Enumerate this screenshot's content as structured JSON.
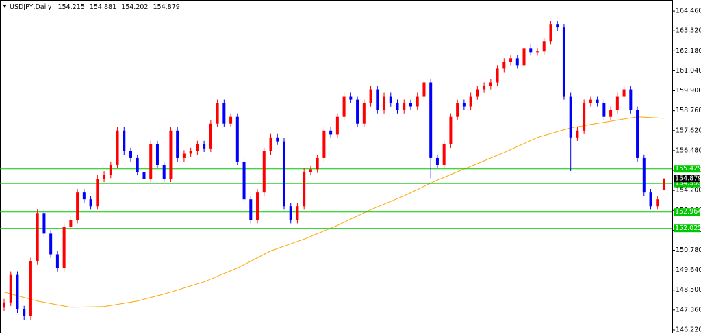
{
  "chart_data": {
    "type": "candlestick",
    "title": "USDJPY,Daily",
    "open": [
      147.5,
      147.793,
      149.365,
      147.399,
      147.006,
      150.151,
      152.903,
      151.724,
      150.544,
      149.758,
      152.117,
      152.51,
      154.082,
      153.689,
      153.296,
      154.868,
      155.1,
      155.655,
      157.62,
      156.441,
      156.048,
      155.261,
      154.868,
      156.834,
      155.655,
      154.868,
      157.62,
      156.048,
      156.3,
      156.441,
      156.834,
      156.6,
      158.013,
      159.192,
      158.013,
      158.406,
      155.851,
      153.689,
      152.51,
      154.082,
      156.441,
      157.227,
      157.0,
      153.296,
      152.51,
      153.296,
      155.261,
      155.4,
      156.048,
      157.62,
      157.4,
      158.406,
      159.586,
      159.389,
      158.013,
      159.192,
      159.979,
      158.799,
      159.586,
      159.192,
      158.799,
      159.192,
      159.0,
      159.586,
      160.372,
      156.048,
      155.655,
      156.834,
      158.406,
      159.192,
      159.0,
      159.586,
      159.979,
      160.175,
      160.372,
      161.158,
      161.551,
      161.748,
      161.355,
      162.337,
      162.1,
      162.141,
      162.73,
      163.713,
      163.517,
      159.586,
      157.227,
      157.62,
      159.192,
      159.389,
      159.2,
      158.406,
      158.799,
      159.586,
      159.979,
      158.799,
      156.048,
      154.082,
      153.296,
      154.215
    ],
    "high": [
      147.993,
      149.565,
      149.565,
      147.599,
      150.351,
      153.103,
      153.103,
      151.924,
      150.744,
      152.317,
      152.71,
      154.282,
      154.282,
      153.889,
      155.068,
      155.3,
      155.855,
      157.82,
      157.82,
      156.641,
      156.248,
      155.461,
      157.034,
      157.034,
      155.855,
      157.82,
      157.82,
      156.5,
      156.641,
      157.034,
      157.034,
      158.213,
      159.392,
      159.392,
      158.606,
      158.606,
      156.051,
      153.889,
      154.282,
      156.641,
      157.427,
      157.427,
      157.2,
      153.496,
      153.496,
      155.461,
      155.6,
      156.248,
      157.82,
      157.82,
      158.606,
      159.786,
      159.786,
      159.589,
      159.392,
      160.179,
      160.179,
      159.786,
      159.786,
      159.392,
      159.392,
      159.392,
      159.786,
      160.572,
      160.572,
      156.248,
      157.034,
      158.606,
      159.392,
      159.392,
      159.786,
      160.179,
      160.375,
      160.572,
      161.358,
      161.751,
      161.948,
      161.948,
      162.537,
      162.537,
      162.341,
      162.93,
      163.913,
      163.913,
      163.717,
      159.786,
      157.82,
      159.392,
      159.589,
      159.589,
      159.4,
      158.999,
      159.786,
      160.179,
      160.179,
      158.999,
      156.248,
      154.282,
      153.889,
      154.881
    ],
    "low": [
      147.3,
      147.593,
      147.199,
      146.806,
      146.806,
      149.951,
      151.524,
      150.344,
      149.558,
      149.558,
      151.917,
      152.31,
      153.489,
      153.096,
      153.096,
      154.668,
      154.9,
      155.455,
      156.241,
      155.848,
      155.061,
      154.668,
      154.668,
      155.455,
      154.668,
      154.668,
      155.848,
      155.848,
      156.1,
      156.241,
      156.4,
      156.4,
      157.813,
      157.813,
      157.813,
      155.651,
      153.489,
      152.31,
      152.31,
      153.882,
      156.241,
      156.8,
      153.096,
      152.31,
      152.31,
      153.096,
      155.061,
      155.2,
      155.848,
      157.2,
      157.2,
      158.206,
      159.189,
      157.813,
      157.813,
      158.992,
      158.599,
      158.599,
      158.992,
      158.599,
      158.599,
      158.8,
      158.8,
      159.386,
      154.9,
      155.455,
      155.455,
      156.634,
      158.206,
      158.8,
      158.8,
      159.386,
      159.779,
      159.975,
      160.172,
      160.958,
      161.351,
      161.155,
      161.155,
      161.9,
      161.9,
      161.941,
      162.53,
      163.317,
      159.386,
      155.3,
      157.027,
      157.42,
      158.992,
      159.0,
      158.206,
      158.206,
      158.599,
      159.386,
      158.599,
      155.848,
      153.882,
      153.096,
      153.096,
      154.202
    ],
    "close": [
      147.793,
      149.365,
      147.399,
      147.006,
      150.151,
      152.903,
      151.724,
      150.544,
      149.758,
      152.117,
      152.51,
      154.082,
      153.689,
      153.296,
      154.868,
      155.1,
      155.655,
      157.62,
      156.441,
      156.048,
      155.261,
      154.868,
      156.834,
      155.655,
      154.868,
      157.62,
      156.048,
      156.3,
      156.441,
      156.834,
      156.6,
      158.013,
      159.192,
      158.013,
      158.406,
      155.851,
      153.689,
      152.51,
      154.082,
      156.441,
      157.227,
      157.0,
      153.296,
      152.51,
      153.296,
      155.261,
      155.4,
      156.048,
      157.62,
      157.4,
      158.406,
      159.586,
      159.389,
      158.013,
      159.192,
      159.979,
      158.799,
      159.586,
      159.192,
      158.799,
      159.192,
      159.0,
      159.586,
      160.372,
      156.048,
      155.655,
      156.834,
      158.406,
      159.192,
      159.0,
      159.586,
      159.979,
      160.175,
      160.372,
      161.158,
      161.551,
      161.748,
      161.355,
      162.337,
      162.1,
      162.141,
      162.73,
      163.713,
      163.517,
      159.586,
      157.227,
      157.62,
      159.192,
      159.389,
      159.2,
      158.406,
      158.799,
      159.586,
      159.979,
      158.799,
      156.048,
      154.082,
      153.296,
      153.689,
      154.879
    ],
    "ma": [
      148.382,
      148.28,
      148.178,
      148.076,
      147.973,
      147.871,
      147.8,
      147.729,
      147.659,
      147.588,
      147.517,
      147.525,
      147.533,
      147.541,
      147.549,
      147.557,
      147.62,
      147.683,
      147.745,
      147.808,
      147.871,
      147.973,
      148.075,
      148.178,
      148.28,
      148.382,
      148.5,
      148.618,
      148.736,
      148.854,
      148.972,
      149.129,
      149.286,
      149.443,
      149.601,
      149.758,
      149.955,
      150.151,
      150.348,
      150.545,
      150.741,
      150.875,
      151.008,
      151.142,
      151.276,
      151.409,
      151.566,
      151.723,
      151.881,
      152.038,
      152.195,
      152.376,
      152.556,
      152.737,
      152.918,
      153.099,
      153.256,
      153.414,
      153.571,
      153.728,
      153.886,
      154.067,
      154.247,
      154.428,
      154.609,
      154.79,
      154.947,
      155.104,
      155.262,
      155.419,
      155.576,
      155.733,
      155.89,
      156.048,
      156.205,
      156.362,
      156.535,
      156.708,
      156.881,
      157.054,
      157.227,
      157.337,
      157.447,
      157.557,
      157.667,
      157.777,
      157.84,
      157.903,
      157.966,
      158.029,
      158.092,
      158.155,
      158.218,
      158.28,
      158.343,
      158.406,
      158.386,
      158.367,
      158.347,
      158.328
    ],
    "levels": [
      155.429,
      154.593,
      152.964,
      152.025
    ],
    "up_color": "#ff0000",
    "down_color": "#0000ff",
    "ma_color": "#ffa500",
    "level_color": "#00c800",
    "ylim": [
      145.984,
      165.089
    ],
    "yticks": [
      {
        "value": 146.22,
        "label": "146.220"
      },
      {
        "value": 147.36,
        "label": "147.360"
      },
      {
        "value": 148.5,
        "label": "148.500"
      },
      {
        "value": 149.64,
        "label": "149.640"
      },
      {
        "value": 150.78,
        "label": "150.780"
      },
      {
        "value": 151.92,
        "label": "151.920"
      },
      {
        "value": 153.06,
        "label": "153.060"
      },
      {
        "value": 154.2,
        "label": "154.200"
      },
      {
        "value": 155.34,
        "label": "155.340"
      },
      {
        "value": 156.48,
        "label": "156.480"
      },
      {
        "value": 157.62,
        "label": "157.620"
      },
      {
        "value": 158.76,
        "label": "158.760"
      },
      {
        "value": 159.9,
        "label": "159.900"
      },
      {
        "value": 161.04,
        "label": "161.040"
      },
      {
        "value": 162.18,
        "label": "162.180"
      },
      {
        "value": 163.32,
        "label": "163.320"
      },
      {
        "value": 164.46,
        "label": "164.460"
      }
    ]
  }
}
